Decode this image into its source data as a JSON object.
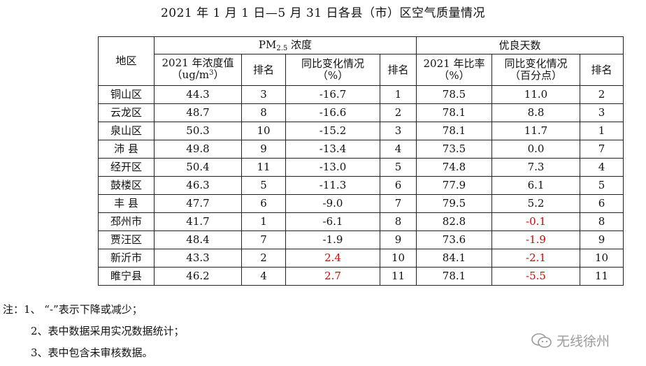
{
  "title": "2021 年 1 月 1 日—5 月 31 日各县（市）区空气质量情况",
  "header": {
    "region": "地区",
    "pm_group_main": "PM",
    "pm_group_sub": "2.5",
    "pm_group_tail": " 浓度",
    "good_group": "优良天数",
    "pm_conc_line1": "2021 年浓度值",
    "pm_conc_line2_pre": "（ug/m",
    "pm_conc_line2_sup": "3",
    "pm_conc_line2_post": "）",
    "rank": "排名",
    "yoy_line1": "同比变化情况",
    "yoy_line2": "（%）",
    "ratio_line1": "2021 年比率",
    "ratio_line2": "（%）",
    "good_yoy_line1": "同比变化情况",
    "good_yoy_line2": "（百分点）"
  },
  "rows": [
    {
      "region": "铜山区",
      "pm": "44.3",
      "pm_rank": "3",
      "pm_yoy": "-16.7",
      "pm_yoy_rank": "1",
      "ratio": "78.5",
      "good_yoy": "11.0",
      "good_rank": "2"
    },
    {
      "region": "云龙区",
      "pm": "48.7",
      "pm_rank": "8",
      "pm_yoy": "-16.6",
      "pm_yoy_rank": "2",
      "ratio": "78.1",
      "good_yoy": "8.8",
      "good_rank": "3"
    },
    {
      "region": "泉山区",
      "pm": "50.3",
      "pm_rank": "10",
      "pm_yoy": "-15.2",
      "pm_yoy_rank": "3",
      "ratio": "78.1",
      "good_yoy": "11.7",
      "good_rank": "1"
    },
    {
      "region": "沛 县",
      "pm": "49.8",
      "pm_rank": "9",
      "pm_yoy": "-13.4",
      "pm_yoy_rank": "4",
      "ratio": "73.5",
      "good_yoy": "0.0",
      "good_rank": "7"
    },
    {
      "region": "经开区",
      "pm": "50.4",
      "pm_rank": "11",
      "pm_yoy": "-13.0",
      "pm_yoy_rank": "5",
      "ratio": "74.8",
      "good_yoy": "7.3",
      "good_rank": "4"
    },
    {
      "region": "鼓楼区",
      "pm": "46.3",
      "pm_rank": "5",
      "pm_yoy": "-11.3",
      "pm_yoy_rank": "6",
      "ratio": "77.9",
      "good_yoy": "6.1",
      "good_rank": "5"
    },
    {
      "region": "丰 县",
      "pm": "47.7",
      "pm_rank": "6",
      "pm_yoy": "-9.0",
      "pm_yoy_rank": "7",
      "ratio": "79.5",
      "good_yoy": "5.2",
      "good_rank": "6"
    },
    {
      "region": "邳州市",
      "pm": "41.7",
      "pm_rank": "1",
      "pm_yoy": "-6.1",
      "pm_yoy_rank": "8",
      "ratio": "82.8",
      "good_yoy": "-0.1",
      "good_rank": "8"
    },
    {
      "region": "贾汪区",
      "pm": "48.4",
      "pm_rank": "7",
      "pm_yoy": "-1.9",
      "pm_yoy_rank": "9",
      "ratio": "73.6",
      "good_yoy": "-1.9",
      "good_rank": "9"
    },
    {
      "region": "新沂市",
      "pm": "43.3",
      "pm_rank": "2",
      "pm_yoy": "2.4",
      "pm_yoy_rank": "10",
      "ratio": "84.1",
      "good_yoy": "-2.1",
      "good_rank": "10"
    },
    {
      "region": "睢宁县",
      "pm": "46.2",
      "pm_rank": "4",
      "pm_yoy": "2.7",
      "pm_yoy_rank": "11",
      "ratio": "78.1",
      "good_yoy": "-5.5",
      "good_rank": "11"
    }
  ],
  "notes": [
    "注：1、 “-”表示下降或减少；",
    "2、表中数据采用实况数据统计；",
    "3、表中包含未审核数据。"
  ],
  "watermark": {
    "text": "无线徐州",
    "icon": "wechat-icon"
  },
  "colors": {
    "negative_change": "#e00000",
    "text": "#111111"
  }
}
